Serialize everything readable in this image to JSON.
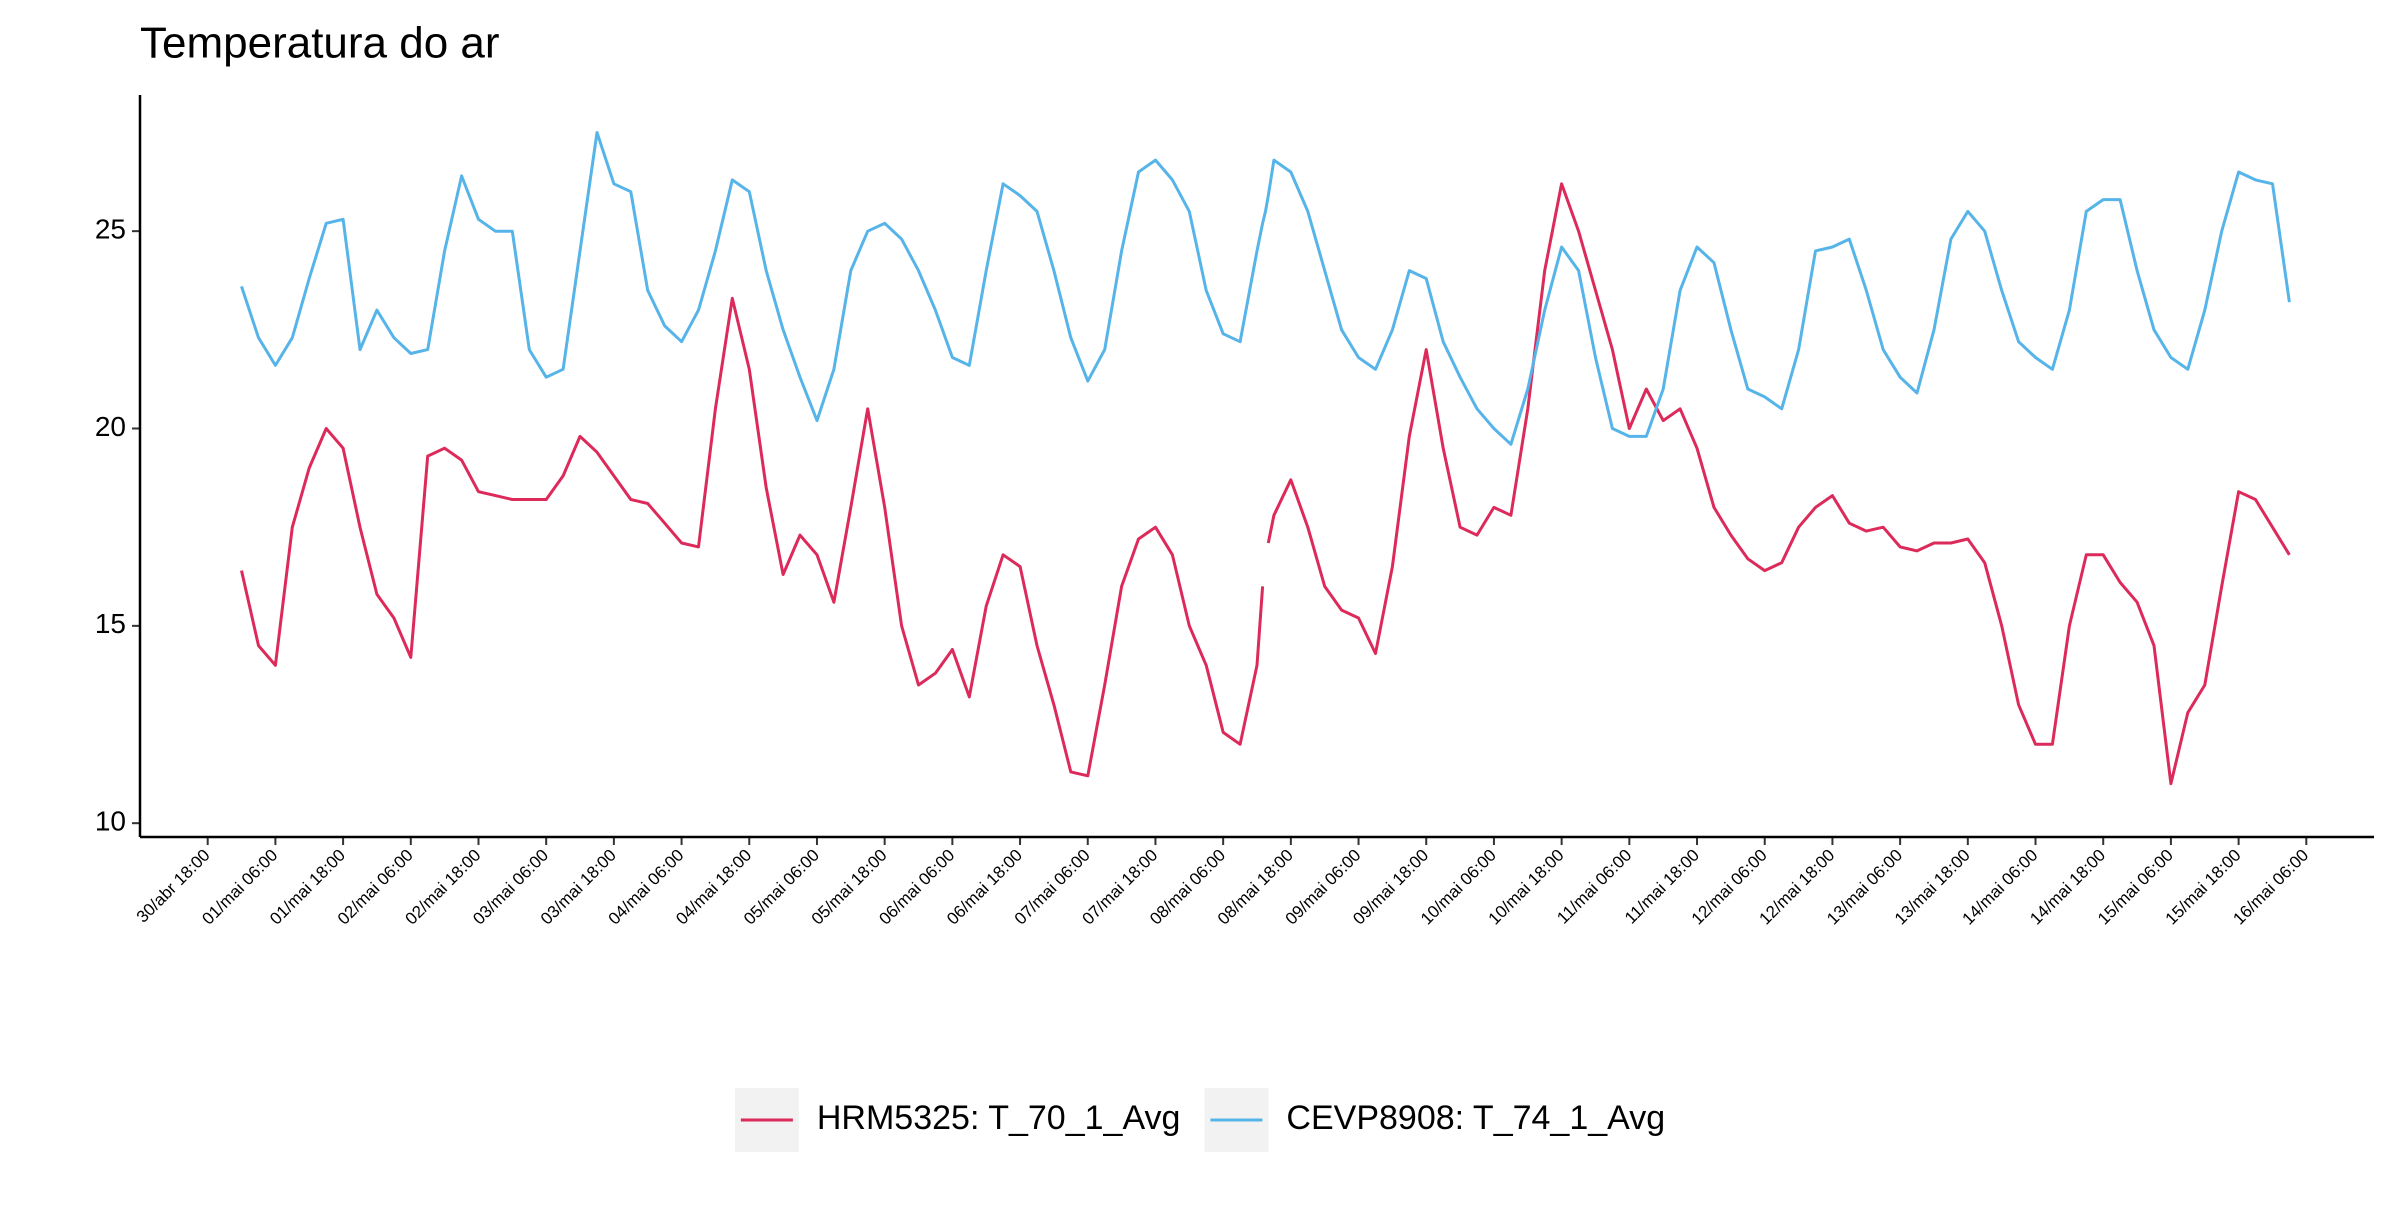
{
  "chart_data": {
    "type": "line",
    "title": "Temperatura do ar",
    "x": [
      "01/mai 00:00",
      "01/mai 03:00",
      "01/mai 06:00",
      "01/mai 09:00",
      "01/mai 12:00",
      "01/mai 15:00",
      "01/mai 18:00",
      "01/mai 21:00",
      "02/mai 00:00",
      "02/mai 03:00",
      "02/mai 06:00",
      "02/mai 09:00",
      "02/mai 12:00",
      "02/mai 15:00",
      "02/mai 18:00",
      "02/mai 21:00",
      "03/mai 00:00",
      "03/mai 03:00",
      "03/mai 06:00",
      "03/mai 09:00",
      "03/mai 12:00",
      "03/mai 15:00",
      "03/mai 18:00",
      "03/mai 21:00",
      "04/mai 00:00",
      "04/mai 03:00",
      "04/mai 06:00",
      "04/mai 09:00",
      "04/mai 12:00",
      "04/mai 15:00",
      "04/mai 18:00",
      "04/mai 21:00",
      "05/mai 00:00",
      "05/mai 03:00",
      "05/mai 06:00",
      "05/mai 09:00",
      "05/mai 12:00",
      "05/mai 15:00",
      "05/mai 18:00",
      "05/mai 21:00",
      "06/mai 00:00",
      "06/mai 03:00",
      "06/mai 06:00",
      "06/mai 09:00",
      "06/mai 12:00",
      "06/mai 15:00",
      "06/mai 18:00",
      "06/mai 21:00",
      "07/mai 00:00",
      "07/mai 03:00",
      "07/mai 06:00",
      "07/mai 09:00",
      "07/mai 12:00",
      "07/mai 15:00",
      "07/mai 18:00",
      "07/mai 21:00",
      "08/mai 00:00",
      "08/mai 03:00",
      "08/mai 06:00",
      "08/mai 09:00",
      "08/mai 12:00",
      "08/mai 13:00",
      "08/mai 13:30",
      "08/mai 14:00",
      "08/mai 15:00",
      "08/mai 18:00",
      "08/mai 21:00",
      "09/mai 00:00",
      "09/mai 03:00",
      "09/mai 06:00",
      "09/mai 09:00",
      "09/mai 12:00",
      "09/mai 15:00",
      "09/mai 18:00",
      "09/mai 21:00",
      "10/mai 00:00",
      "10/mai 03:00",
      "10/mai 06:00",
      "10/mai 09:00",
      "10/mai 12:00",
      "10/mai 15:00",
      "10/mai 18:00",
      "10/mai 21:00",
      "11/mai 00:00",
      "11/mai 03:00",
      "11/mai 06:00",
      "11/mai 09:00",
      "11/mai 12:00",
      "11/mai 15:00",
      "11/mai 18:00",
      "11/mai 21:00",
      "12/mai 00:00",
      "12/mai 03:00",
      "12/mai 06:00",
      "12/mai 09:00",
      "12/mai 12:00",
      "12/mai 15:00",
      "12/mai 18:00",
      "12/mai 21:00",
      "13/mai 00:00",
      "13/mai 03:00",
      "13/mai 06:00",
      "13/mai 09:00",
      "13/mai 12:00",
      "13/mai 15:00",
      "13/mai 18:00",
      "13/mai 21:00",
      "14/mai 00:00",
      "14/mai 03:00",
      "14/mai 06:00",
      "14/mai 09:00",
      "14/mai 12:00",
      "14/mai 15:00",
      "14/mai 18:00",
      "14/mai 21:00",
      "15/mai 00:00",
      "15/mai 03:00",
      "15/mai 06:00",
      "15/mai 09:00",
      "15/mai 12:00",
      "15/mai 15:00",
      "15/mai 18:00",
      "15/mai 21:00",
      "16/mai 00:00",
      "16/mai 03:00"
    ],
    "series": [
      {
        "name": "HRM5325: T_70_1_Avg",
        "color": "#dc2a5a",
        "values": [
          16.4,
          14.5,
          14.0,
          17.5,
          19.0,
          20.0,
          19.5,
          17.5,
          15.8,
          15.2,
          14.2,
          19.3,
          19.5,
          19.2,
          18.4,
          18.3,
          18.2,
          18.2,
          18.2,
          18.8,
          19.8,
          19.4,
          18.8,
          18.2,
          18.1,
          17.6,
          17.1,
          17.0,
          20.5,
          23.3,
          21.5,
          18.5,
          16.3,
          17.3,
          16.8,
          15.6,
          18.0,
          20.5,
          18.0,
          15.0,
          13.5,
          13.8,
          14.4,
          13.2,
          15.5,
          16.8,
          16.5,
          14.5,
          13.0,
          11.3,
          11.2,
          13.5,
          16.0,
          17.2,
          17.5,
          16.8,
          15.0,
          14.0,
          12.3,
          12.0,
          14.0,
          16.0,
          null,
          17.1,
          17.8,
          18.7,
          17.5,
          16.0,
          15.4,
          15.2,
          14.3,
          16.5,
          19.8,
          22.0,
          19.5,
          17.5,
          17.3,
          18.0,
          17.8,
          20.5,
          24.0,
          26.2,
          25.0,
          23.5,
          22.0,
          20.0,
          21.0,
          20.2,
          20.5,
          19.5,
          18.0,
          17.3,
          16.7,
          16.4,
          16.6,
          17.5,
          18.0,
          18.3,
          17.6,
          17.4,
          17.5,
          17.0,
          16.9,
          17.1,
          17.1,
          17.2,
          16.6,
          15.0,
          13.0,
          12.0,
          12.0,
          15.0,
          16.8,
          16.8,
          16.1,
          15.6,
          14.5,
          11.0,
          12.8,
          13.5,
          16.0,
          18.4,
          18.2,
          17.5,
          16.8
        ]
      },
      {
        "name": "CEVP8908: T_74_1_Avg",
        "color": "#56b4e9",
        "values": [
          23.6,
          22.3,
          21.6,
          22.3,
          23.8,
          25.2,
          25.3,
          22.0,
          23.0,
          22.3,
          21.9,
          22.0,
          24.5,
          26.4,
          25.3,
          25.0,
          25.0,
          22.0,
          21.3,
          21.5,
          24.5,
          27.5,
          26.2,
          26.0,
          23.5,
          22.6,
          22.2,
          23.0,
          24.5,
          26.3,
          26.0,
          24.0,
          22.5,
          21.3,
          20.2,
          21.5,
          24.0,
          25.0,
          25.2,
          24.8,
          24.0,
          23.0,
          21.8,
          21.6,
          24.0,
          26.2,
          25.9,
          25.5,
          24.0,
          22.3,
          21.2,
          22.0,
          24.5,
          26.5,
          26.8,
          26.3,
          25.5,
          23.5,
          22.4,
          22.2,
          24.5,
          25.2,
          25.5,
          25.9,
          26.8,
          26.5,
          25.5,
          24.0,
          22.5,
          21.8,
          21.5,
          22.5,
          24.0,
          23.8,
          22.2,
          21.3,
          20.5,
          20.0,
          19.6,
          21.0,
          23.0,
          24.6,
          24.0,
          21.8,
          20.0,
          19.8,
          19.8,
          21.0,
          23.5,
          24.6,
          24.2,
          22.5,
          21.0,
          20.8,
          20.5,
          22.0,
          24.5,
          24.6,
          24.8,
          23.5,
          22.0,
          21.3,
          20.9,
          22.5,
          24.8,
          25.5,
          25.0,
          23.5,
          22.2,
          21.8,
          21.5,
          23.0,
          25.5,
          25.8,
          25.8,
          24.0,
          22.5,
          21.8,
          21.5,
          23.0,
          25.0,
          26.5,
          26.3,
          26.2,
          23.2
        ]
      }
    ],
    "xlim": [
      "30/abr 06:00",
      "16/mai 18:00"
    ],
    "xticks": [
      "30/abr 18:00",
      "01/mai 06:00",
      "01/mai 18:00",
      "02/mai 06:00",
      "02/mai 18:00",
      "03/mai 06:00",
      "03/mai 18:00",
      "04/mai 06:00",
      "04/mai 18:00",
      "05/mai 06:00",
      "05/mai 18:00",
      "06/mai 06:00",
      "06/mai 18:00",
      "07/mai 06:00",
      "07/mai 18:00",
      "08/mai 06:00",
      "08/mai 18:00",
      "09/mai 06:00",
      "09/mai 18:00",
      "10/mai 06:00",
      "10/mai 18:00",
      "11/mai 06:00",
      "11/mai 18:00",
      "12/mai 06:00",
      "12/mai 18:00",
      "13/mai 06:00",
      "13/mai 18:00",
      "14/mai 06:00",
      "14/mai 18:00",
      "15/mai 06:00",
      "15/mai 18:00",
      "16/mai 06:00"
    ],
    "ylim": [
      9.65,
      28.45
    ],
    "yticks": [
      10,
      15,
      20,
      25
    ],
    "grid": false,
    "legend": "bottom"
  }
}
